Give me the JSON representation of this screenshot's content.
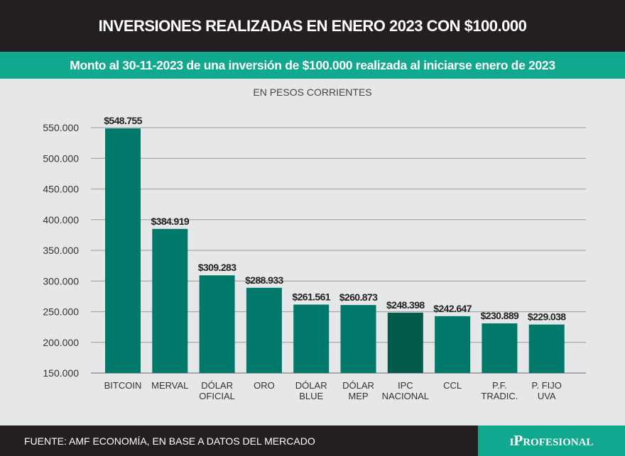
{
  "header": {
    "title": "INVERSIONES REALIZADAS EN ENERO 2023 CON $100.000"
  },
  "subheader": {
    "text": "Monto al 30-11-2023 de una inversión de $100.000 realizada al iniciarse enero de 2023"
  },
  "footer": {
    "source": "FUENTE: AMF ECONOMÍA, EN BASE A DATOS DEL MERCADO",
    "logo": "iProfesional"
  },
  "colors": {
    "bar": "#00796a",
    "highlight": "#015a4a",
    "header": "#231f20",
    "accent": "#10a88e"
  },
  "chart_data": {
    "type": "bar",
    "title": "INVERSIONES REALIZADAS EN ENERO 2023 CON $100.000",
    "subtitle": "EN PESOS CORRIENTES",
    "categories": [
      [
        "BITCOIN"
      ],
      [
        "MERVAL"
      ],
      [
        "DÓLAR",
        "OFICIAL"
      ],
      [
        "ORO"
      ],
      [
        "DÓLAR",
        "BLUE"
      ],
      [
        "DÓLAR",
        "MEP"
      ],
      [
        "IPC",
        "NACIONAL"
      ],
      [
        "CCL"
      ],
      [
        "P.F.",
        "TRADIC."
      ],
      [
        "P. FIJO",
        "UVA"
      ]
    ],
    "values": [
      548755,
      384919,
      309283,
      288933,
      261561,
      260873,
      248398,
      242647,
      230889,
      229038
    ],
    "data_labels": [
      "$548.755",
      "$384.919",
      "$309.283",
      "$288.933",
      "$261.561",
      "$260.873",
      "$248.398",
      "$242.647",
      "$230.889",
      "$229.038"
    ],
    "highlighted": "IPC NACIONAL",
    "ylim": [
      150000,
      550000
    ],
    "yticks": [
      150000,
      200000,
      250000,
      300000,
      350000,
      400000,
      450000,
      500000,
      550000
    ],
    "ytick_labels": [
      "150.000",
      "200.000",
      "250.000",
      "300.000",
      "350.000",
      "400.000",
      "450.000",
      "500.000",
      "550.000"
    ],
    "grid": true,
    "legend": "none"
  }
}
